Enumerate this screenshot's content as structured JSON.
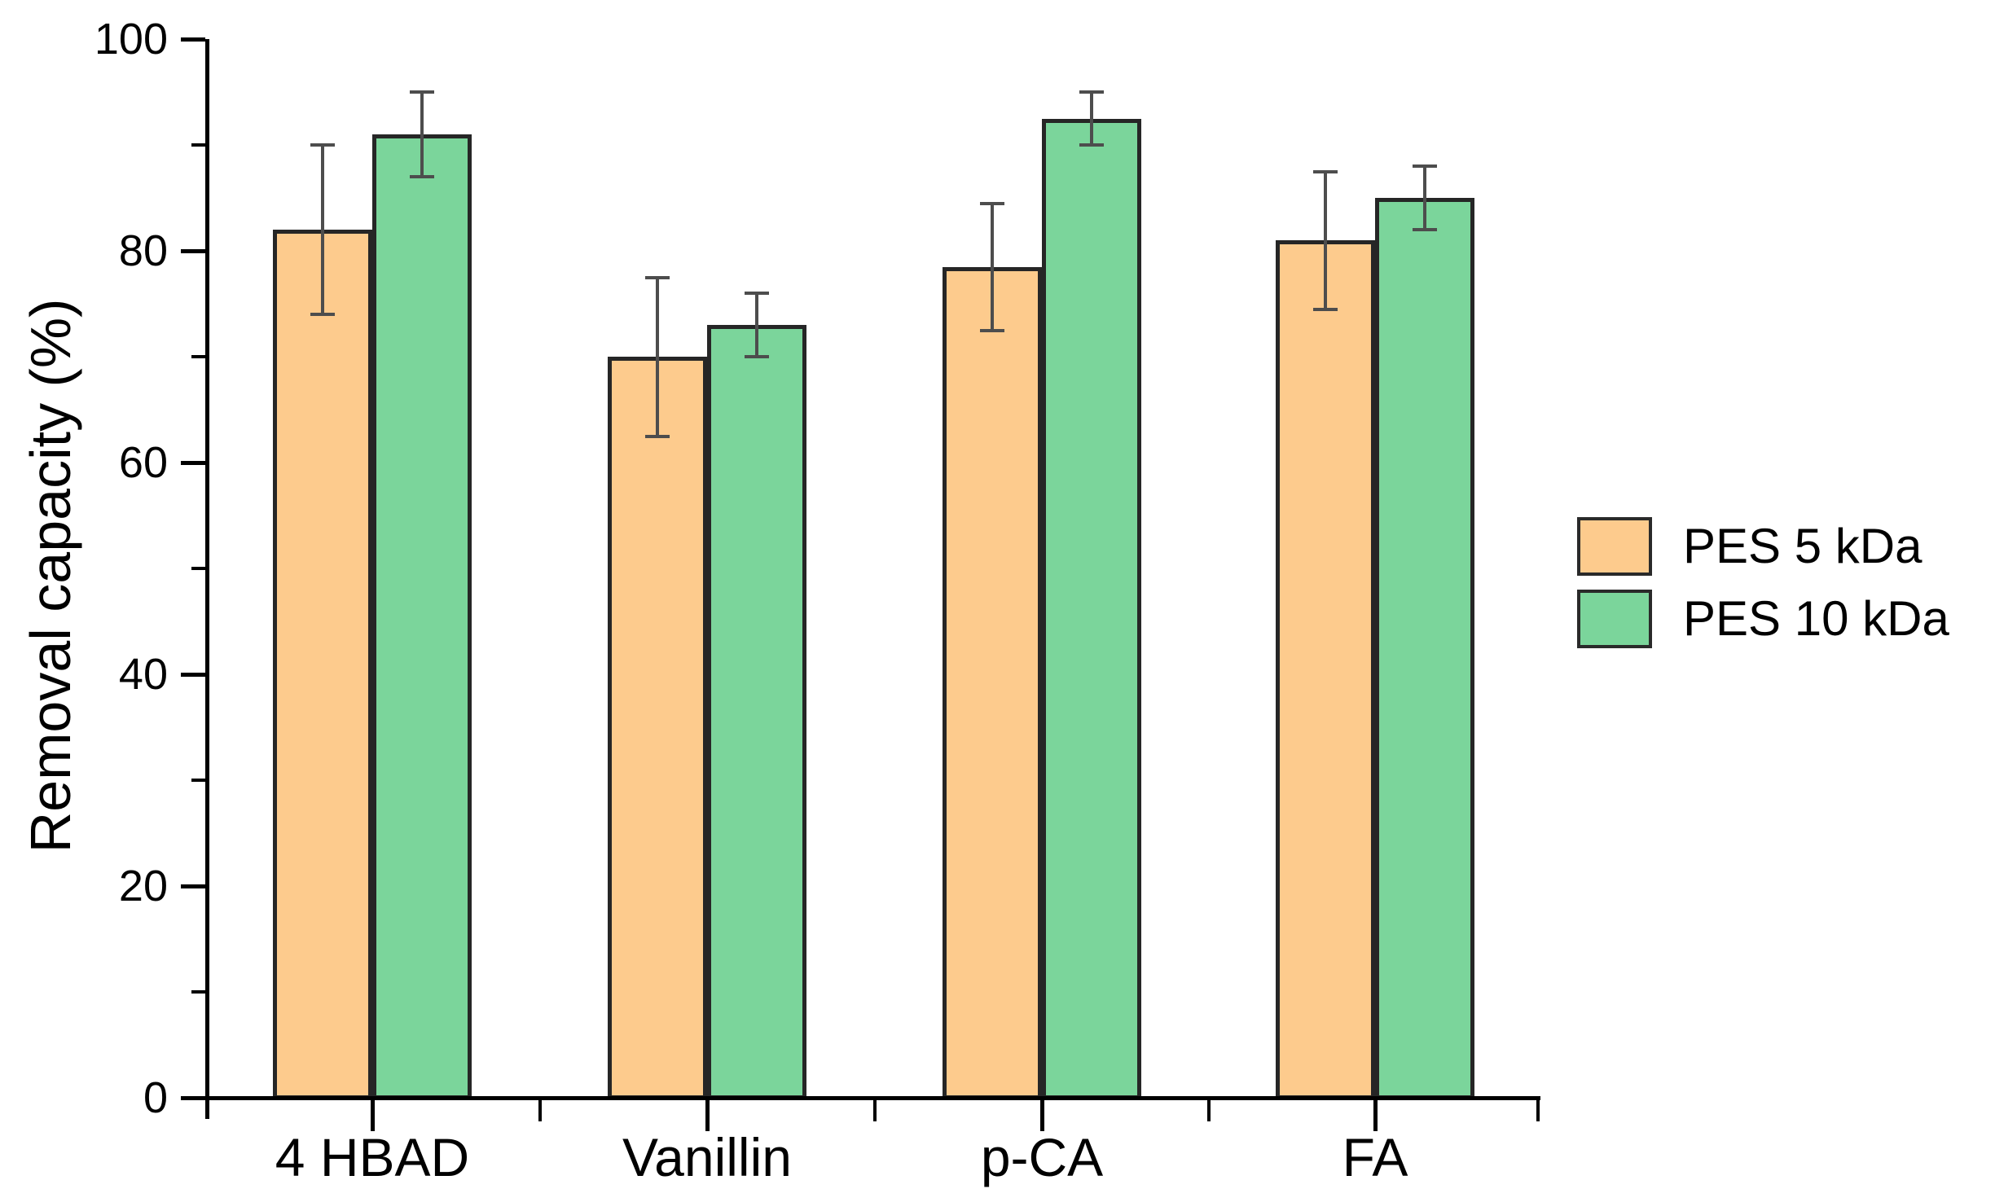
{
  "figure": {
    "background": "#ffffff",
    "text_color": "#000000"
  },
  "chart_data": {
    "type": "bar",
    "title": "",
    "xlabel": "",
    "ylabel": "Removal capacity (%)",
    "categories": [
      "4 HBAD",
      "Vanillin",
      "p-CA",
      "FA"
    ],
    "series": [
      {
        "name": "PES 5 kDa",
        "color": "#FDCB8D",
        "values": [
          82,
          70,
          78.5,
          81
        ],
        "errors": [
          8,
          7.5,
          6,
          6.5
        ]
      },
      {
        "name": "PES 10 kDa",
        "color": "#7BD59B",
        "values": [
          91,
          73,
          92.5,
          85
        ],
        "errors": [
          4,
          3,
          2.5,
          3
        ]
      }
    ],
    "ylim": [
      0,
      100
    ],
    "y_major_ticks": [
      0,
      20,
      40,
      60,
      80,
      100
    ],
    "y_minor_ticks": [
      10,
      30,
      50,
      70,
      90
    ],
    "grid": false,
    "legend_position": "right",
    "bar_border_color": "#262626",
    "error_bar_color": "#4D4D4D",
    "axis_color": "#000000"
  }
}
